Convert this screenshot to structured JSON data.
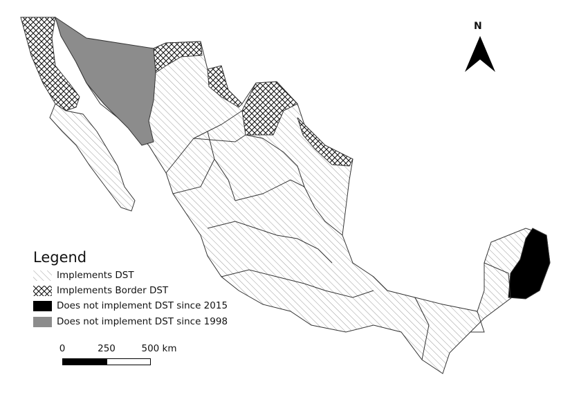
{
  "legend": {
    "title": "Legend",
    "items": [
      {
        "label": "Implements DST",
        "pattern": "diagonal-hatch"
      },
      {
        "label": "Implements Border DST",
        "pattern": "crosshatch"
      },
      {
        "label": "Does not implement DST since 2015",
        "color": "#000000"
      },
      {
        "label": "Does not implement DST since 1998",
        "color": "#8c8c8c"
      }
    ]
  },
  "scale_bar": {
    "labels": [
      "0",
      "250",
      "500 km"
    ]
  },
  "north_arrow": {
    "label": "N",
    "icon": "north-arrow-icon"
  },
  "colors": {
    "hatch": "#9a9a9a",
    "border": "#333333",
    "no_dst_2015": "#000000",
    "no_dst_1998": "#8c8c8c"
  }
}
